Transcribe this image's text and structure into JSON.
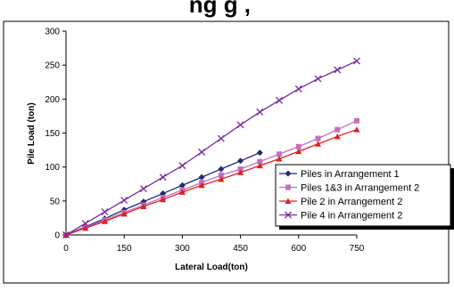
{
  "chart_data": {
    "type": "line",
    "title": "",
    "xlabel": "Lateral Load(ton)",
    "ylabel": "Pile Load (ton)",
    "xlim": [
      0,
      750
    ],
    "ylim": [
      0,
      300
    ],
    "x_ticks": [
      0,
      150,
      300,
      450,
      600,
      750
    ],
    "y_ticks": [
      0,
      50,
      100,
      150,
      200,
      250,
      300
    ],
    "grid": false,
    "legend_position": "bottom-right",
    "series": [
      {
        "name": "Piles in Arrangement 1",
        "color": "#1f2a78",
        "marker": "diamond",
        "x": [
          0,
          50,
          100,
          150,
          200,
          250,
          300,
          350,
          400,
          450,
          500
        ],
        "y": [
          0,
          12,
          24,
          37,
          49,
          61,
          73,
          85,
          97,
          109,
          121
        ]
      },
      {
        "name": "Piles 1&3 in Arrangement 2",
        "color": "#c070c0",
        "marker": "square",
        "x": [
          0,
          50,
          100,
          150,
          200,
          250,
          300,
          350,
          400,
          450,
          500,
          550,
          600,
          650,
          700,
          750
        ],
        "y": [
          0,
          11,
          22,
          33,
          44,
          55,
          66,
          77,
          88,
          97,
          108,
          119,
          130,
          142,
          155,
          168
        ]
      },
      {
        "name": "Pile 2 in Arrangement 2",
        "color": "#e02020",
        "marker": "triangle",
        "x": [
          0,
          50,
          100,
          150,
          200,
          250,
          300,
          350,
          400,
          450,
          500,
          550,
          600,
          650,
          700,
          750
        ],
        "y": [
          0,
          10,
          20,
          31,
          42,
          52,
          63,
          73,
          82,
          92,
          102,
          112,
          123,
          134,
          145,
          155
        ]
      },
      {
        "name": "Pile 4 in Arrangement 2",
        "color": "#7a2a9a",
        "marker": "x",
        "x": [
          0,
          50,
          100,
          150,
          200,
          250,
          300,
          350,
          400,
          450,
          500,
          550,
          600,
          650,
          700,
          750
        ],
        "y": [
          0,
          17,
          34,
          51,
          68,
          85,
          102,
          122,
          142,
          162,
          181,
          198,
          215,
          230,
          243,
          256
        ]
      }
    ]
  },
  "header_partial_text": "ng g , "
}
